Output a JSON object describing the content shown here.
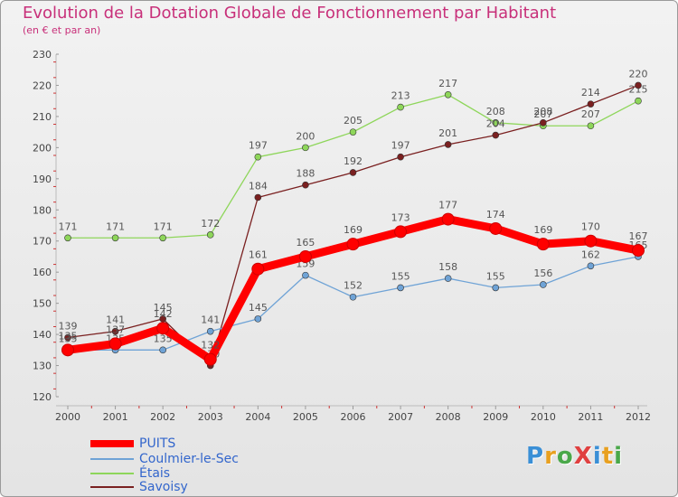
{
  "header": {
    "title": "Evolution de la Dotation Globale de Fonctionnement par Habitant",
    "subtitle": "(en € et par an)"
  },
  "logo": {
    "text": "ProXiti"
  },
  "chart_data": {
    "type": "line",
    "title": "Evolution de la Dotation Globale de Fonctionnement par Habitant",
    "subtitle": "(en € et par an)",
    "x": [
      2000,
      2001,
      2002,
      2003,
      2004,
      2005,
      2006,
      2007,
      2008,
      2009,
      2010,
      2011,
      2012
    ],
    "xlabels": [
      "2000",
      "2001",
      "2002",
      "2003",
      "2004",
      "2005",
      "2006",
      "2007",
      "2008",
      "2009",
      "2010",
      "2011",
      "2012"
    ],
    "ylim": [
      120,
      230
    ],
    "yticks": [
      120,
      130,
      140,
      150,
      160,
      170,
      180,
      190,
      200,
      210,
      220,
      230
    ],
    "grid": false,
    "legend_position": "bottom-left",
    "series": [
      {
        "name": "Étais",
        "color": "#8ed65a",
        "values": [
          171,
          171,
          171,
          172,
          197,
          200,
          205,
          213,
          217,
          208,
          207,
          207,
          215
        ]
      },
      {
        "name": "Savoisy",
        "color": "#7a2020",
        "values": [
          139,
          141,
          145,
          130,
          184,
          188,
          192,
          197,
          201,
          204,
          208,
          214,
          220
        ]
      },
      {
        "name": "Coulmier-le-Sec",
        "color": "#6fa3d6",
        "values": [
          135,
          135,
          135,
          141,
          145,
          159,
          152,
          155,
          158,
          155,
          156,
          162,
          165
        ]
      },
      {
        "name": "PUITS",
        "color": "#ff0000",
        "values": [
          135,
          137,
          142,
          132,
          161,
          165,
          169,
          173,
          177,
          174,
          169,
          170,
          167
        ]
      }
    ],
    "legend": [
      "PUITS",
      "Coulmier-le-Sec",
      "Étais",
      "Savoisy"
    ]
  }
}
